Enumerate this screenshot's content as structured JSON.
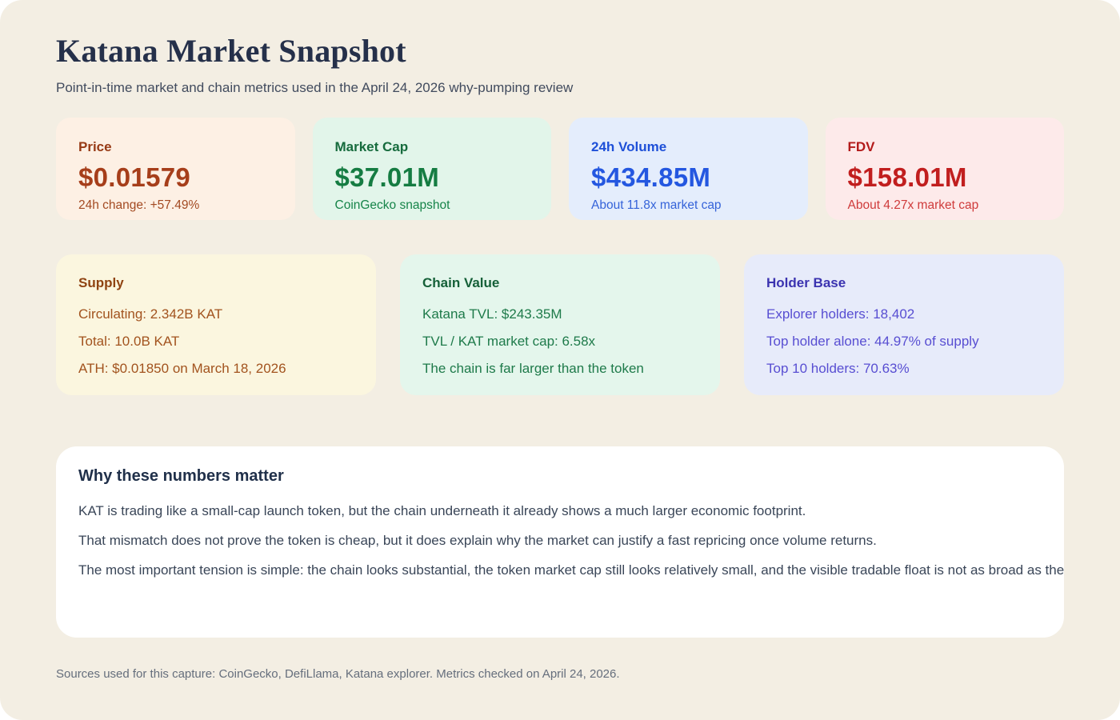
{
  "theme": {
    "canvas_bg": "#f3eee3",
    "panel_bg": "#ffffff",
    "title_color": "#25304a",
    "subtitle_color": "#414b5e",
    "why_heading_color": "#20304a",
    "why_text_color": "#3a4658",
    "footer_color": "#656e7c"
  },
  "header": {
    "title": "Katana Market Snapshot",
    "subtitle": "Point-in-time market and chain metrics used in the April 24, 2026 why-pumping review"
  },
  "stat_cards": [
    {
      "label": "Price",
      "value": "$0.01579",
      "note": "24h change: +57.49%",
      "bg": "#fdf0e4",
      "label_color": "#973a15",
      "value_color": "#a63e1a",
      "note_color": "#a34a22"
    },
    {
      "label": "Market Cap",
      "value": "$37.01M",
      "note": "CoinGecko snapshot",
      "bg": "#e2f5ea",
      "label_color": "#166b3d",
      "value_color": "#157c42",
      "note_color": "#168449"
    },
    {
      "label": "24h Volume",
      "value": "$434.85M",
      "note": "About 11.8x market cap",
      "bg": "#e4edfc",
      "label_color": "#1e50d8",
      "value_color": "#2457e0",
      "note_color": "#3563d9"
    },
    {
      "label": "FDV",
      "value": "$158.01M",
      "note": "About 4.27x market cap",
      "bg": "#fdeaea",
      "label_color": "#b31b1b",
      "value_color": "#c11e1e",
      "note_color": "#cf3b3b"
    }
  ],
  "detail_cards": [
    {
      "title": "Supply",
      "lines": [
        "Circulating: 2.342B KAT",
        "Total: 10.0B KAT",
        "ATH: $0.01850 on March 18, 2026"
      ],
      "bg": "#fbf6df",
      "title_color": "#8f4312",
      "line_color": "#a2531e"
    },
    {
      "title": "Chain Value",
      "lines": [
        "Katana TVL: $243.35M",
        "TVL / KAT market cap: 6.58x",
        "The chain is far larger than the token"
      ],
      "bg": "#e4f6ec",
      "title_color": "#156038",
      "line_color": "#1e7a4a"
    },
    {
      "title": "Holder Base",
      "lines": [
        "Explorer holders: 18,402",
        "Top holder alone: 44.97% of supply",
        "Top 10 holders: 70.63%"
      ],
      "bg": "#e7ebfa",
      "title_color": "#3b33b0",
      "line_color": "#584ed2"
    }
  ],
  "why": {
    "heading": "Why these numbers matter",
    "paragraphs": [
      "KAT is trading like a small-cap launch token, but the chain underneath it already shows a much larger economic footprint.",
      "That mismatch does not prove the token is cheap, but it does explain why the market can justify a fast repricing once volume returns.",
      "The most important tension is simple: the chain looks substantial, the token market cap still looks relatively small, and the visible tradable float is not as broad as the"
    ]
  },
  "footer": {
    "text": "Sources used for this capture: CoinGecko, DefiLlama, Katana explorer. Metrics checked on April 24, 2026."
  }
}
